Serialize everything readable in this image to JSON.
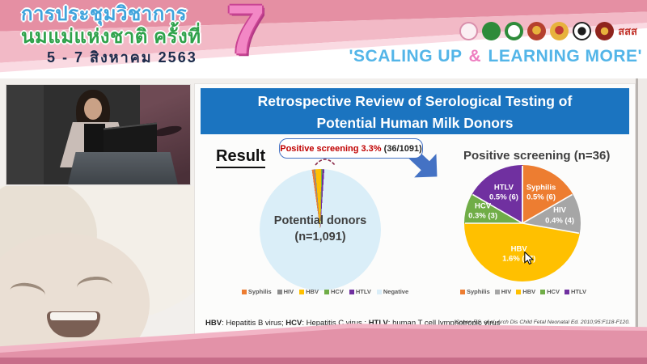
{
  "header": {
    "conference_title_line1": "การประชุมวิชาการ",
    "conference_title_line2": "นมแม่แห่งชาติ ครั้งที่",
    "conference_dates": "5 - 7 สิงหาคม 2563",
    "edition_number": "7",
    "slogan": {
      "prefix": "'SCALING UP ",
      "ampersand": "&",
      "suffix": " LEARNING MORE'"
    },
    "logo_badge_text": "สสส",
    "colors": {
      "title_line1": "#3FA3DC",
      "title_line2": "#2FA24B",
      "dates": "#1C2B4B",
      "edition_pink": "#F387C5",
      "slogan_blue": "#53B5E8",
      "ampersand_pink": "#EE7EC0",
      "band_dark_pink": "#E58FA3",
      "band_light_pink": "#F2B9C6",
      "bottom_band": "#E392A8"
    }
  },
  "slide": {
    "title_line1": "Retrospective Review of Serological Testing of",
    "title_line2": "Potential Human Milk Donors",
    "result_label": "Result",
    "callout_highlight": "Positive screening 3.3%",
    "callout_detail": " (36/1091)",
    "title_bar_color": "#1B74C0",
    "callout_border_color": "#4472C4",
    "footnote_parts": [
      {
        "text": "HBV",
        "bold": true
      },
      {
        "text": ": Hepatitis B virus; ",
        "bold": false
      },
      {
        "text": "HCV",
        "bold": true
      },
      {
        "text": ": Hepatitis C virus ; ",
        "bold": false
      },
      {
        "text": "HTLV",
        "bold": true
      },
      {
        "text": ": human T cell lymphotropic virus",
        "bold": false
      }
    ],
    "citation": "Cohen RS, et al. Arch Dis Child Fetal Neonatal Ed. 2010;95:F118-F120."
  },
  "chart_data": [
    {
      "type": "pie",
      "name": "potential-donors-pie",
      "center_label_line1": "Potential donors",
      "center_label_line2": "(n=1,091)",
      "categories": [
        "Syphilis",
        "HIV",
        "HBV",
        "HCV",
        "HTLV",
        "Negative"
      ],
      "values": [
        6,
        4,
        17,
        3,
        6,
        1055
      ],
      "total": 1091,
      "annotation": "Positive screening 3.3% (36/1091)",
      "colors": [
        "#ED7D31",
        "#8C8C8C",
        "#FFC000",
        "#70AD47",
        "#7030A0",
        "#DAEEF8"
      ],
      "legend_position": "bottom",
      "start_angle_deg": 352
    },
    {
      "type": "pie",
      "name": "positive-screening-pie",
      "title": "Positive screening (n=36)",
      "categories": [
        "Syphilis",
        "HIV",
        "HBV",
        "HCV",
        "HTLV"
      ],
      "values": [
        6,
        4,
        17,
        3,
        6
      ],
      "total": 36,
      "slices": [
        {
          "name": "Syphilis",
          "pct": "0.5% (6)"
        },
        {
          "name": "HIV",
          "pct": "0.4% (4)"
        },
        {
          "name": "HBV",
          "pct": "1.6% (17)"
        },
        {
          "name": "HCV",
          "pct": "0.3% (3)"
        },
        {
          "name": "HTLV",
          "pct": "0.5% (6)"
        }
      ],
      "colors": [
        "#ED7D31",
        "#A6A6A6",
        "#FFC000",
        "#70AD47",
        "#7030A0"
      ],
      "legend_position": "bottom",
      "start_angle_deg": 0
    }
  ]
}
